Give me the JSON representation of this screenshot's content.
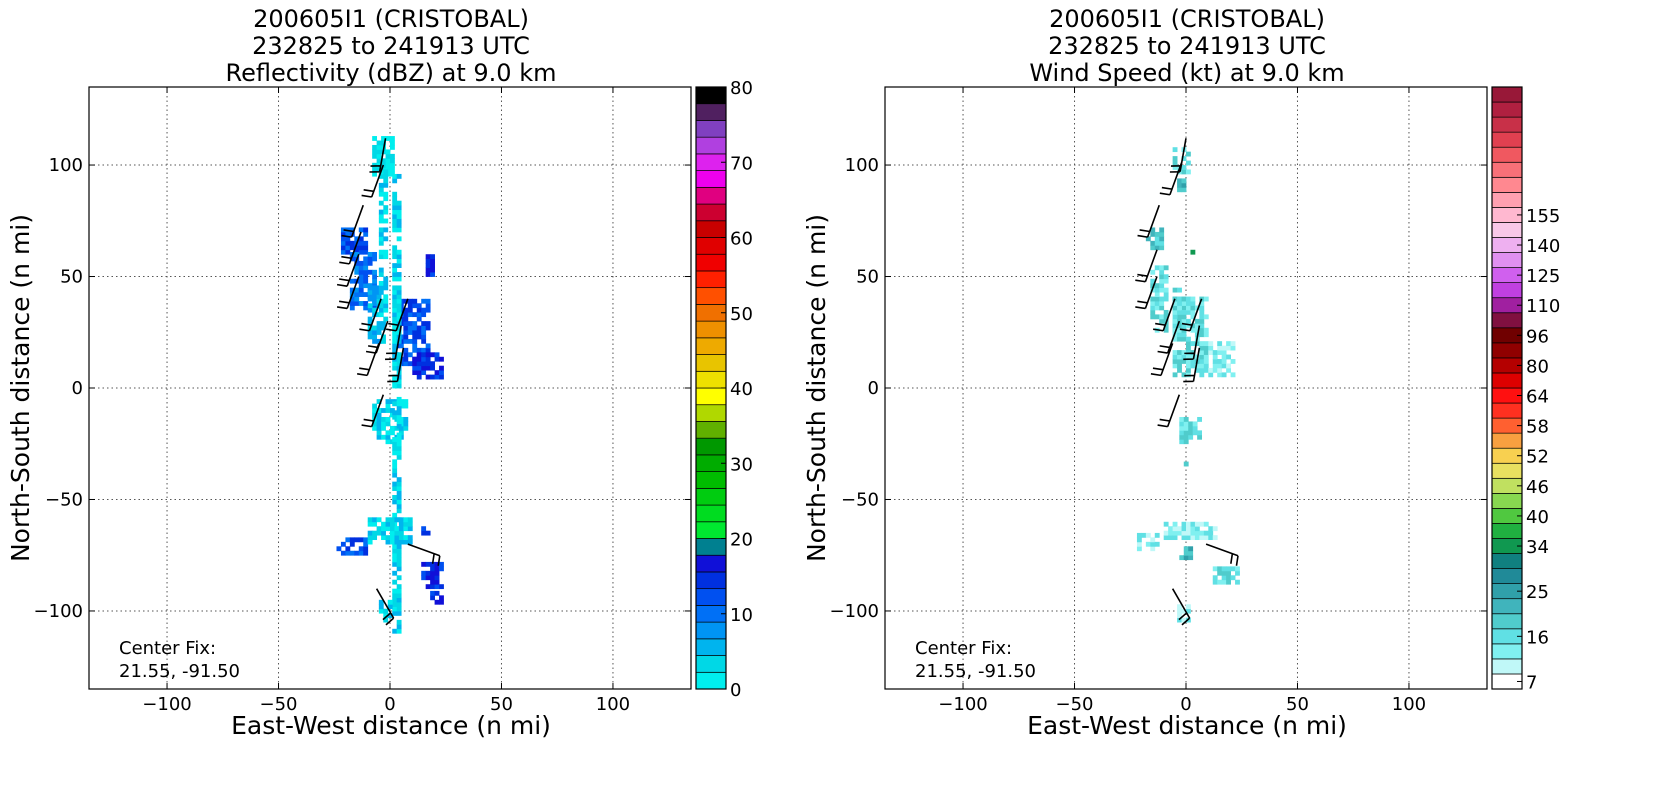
{
  "chart_data": [
    {
      "type": "heatmap",
      "title": [
        "200605I1 (CRISTOBAL)",
        "232825 to 241913 UTC",
        "Reflectivity (dBZ) at 9.0 km"
      ],
      "xlabel": "East-West distance (n mi)",
      "ylabel": "North-South distance (n mi)",
      "xlim": [
        -135,
        135
      ],
      "ylim": [
        -135,
        135
      ],
      "xticks": [
        -100,
        -50,
        0,
        50,
        100
      ],
      "yticks": [
        -100,
        -50,
        0,
        50,
        100
      ],
      "xtick_labels": [
        "−100",
        "−50",
        "0",
        "50",
        "100"
      ],
      "ytick_labels": [
        "−100",
        "−50",
        "0",
        "50",
        "100"
      ],
      "grid": true,
      "annotation": [
        "Center Fix:",
        "21.55, -91.50"
      ],
      "colorbar": {
        "min": 0,
        "max": 80,
        "step": 2.5,
        "ticks": [
          0,
          10,
          20,
          30,
          40,
          50,
          60,
          70,
          80
        ],
        "tick_labels": [
          "0",
          "10",
          "20",
          "30",
          "40",
          "50",
          "60",
          "70",
          "80"
        ],
        "colors": [
          "#00eeee",
          "#00d8e6",
          "#00b4ee",
          "#0094f4",
          "#0070f6",
          "#0050f0",
          "#0030e0",
          "#1010d8",
          "#008090",
          "#00e830",
          "#00dc20",
          "#00cc10",
          "#00bc00",
          "#00ac00",
          "#009800",
          "#60b000",
          "#b0d800",
          "#ffff00",
          "#eee000",
          "#e8c400",
          "#eeaa00",
          "#ee9000",
          "#f07000",
          "#ff5000",
          "#ff2000",
          "#f00000",
          "#e00000",
          "#c80000",
          "#cc0030",
          "#e00080",
          "#ee00ee",
          "#dd22ee",
          "#b040e0",
          "#8040c0",
          "#502060",
          "#000000"
        ]
      },
      "echo_areas": [
        {
          "x0": -8,
          "x1": 2,
          "y0": 95,
          "y1": 112,
          "level": 0
        },
        {
          "x0": -22,
          "x1": -10,
          "y0": 60,
          "y1": 72,
          "level": 5
        },
        {
          "x0": -18,
          "x1": -6,
          "y0": 35,
          "y1": 60,
          "level": 4
        },
        {
          "x0": -10,
          "x1": -2,
          "y0": 20,
          "y1": 45,
          "level": 2
        },
        {
          "x0": 2,
          "x1": 18,
          "y0": 10,
          "y1": 40,
          "level": 5
        },
        {
          "x0": 10,
          "x1": 24,
          "y0": 4,
          "y1": 15,
          "level": 6
        },
        {
          "x0": 16,
          "x1": 20,
          "y0": 50,
          "y1": 61,
          "level": 6
        },
        {
          "x0": -8,
          "x1": 8,
          "y0": -25,
          "y1": -5,
          "level": 1
        },
        {
          "x0": 1,
          "x1": 5,
          "y0": -110,
          "y1": 95,
          "level": 1
        },
        {
          "x0": -5,
          "x1": -1,
          "y0": 30,
          "y1": 100,
          "level": 1
        },
        {
          "x0": -24,
          "x1": -10,
          "y0": -75,
          "y1": -67,
          "level": 5
        },
        {
          "x0": -10,
          "x1": 10,
          "y0": -70,
          "y1": -58,
          "level": 1
        },
        {
          "x0": 14,
          "x1": 24,
          "y0": -90,
          "y1": -78,
          "level": 6
        },
        {
          "x0": 18,
          "x1": 23,
          "y0": -97,
          "y1": -92,
          "level": 6
        },
        {
          "x0": 14,
          "x1": 18,
          "y0": -66,
          "y1": -62,
          "level": 6
        },
        {
          "x0": -5,
          "x1": 0,
          "y0": -105,
          "y1": -95,
          "level": 1
        }
      ],
      "wind_barbs": [
        {
          "x": -2,
          "y": 112,
          "dir": 190
        },
        {
          "x": -3,
          "y": 100,
          "dir": 200
        },
        {
          "x": -12,
          "y": 82,
          "dir": 200
        },
        {
          "x": -13,
          "y": 70,
          "dir": 200
        },
        {
          "x": -14,
          "y": 60,
          "dir": 200
        },
        {
          "x": -14,
          "y": 50,
          "dir": 200
        },
        {
          "x": -4,
          "y": 40,
          "dir": 200
        },
        {
          "x": 8,
          "y": 40,
          "dir": 200
        },
        {
          "x": -1,
          "y": 30,
          "dir": 200
        },
        {
          "x": 5,
          "y": 28,
          "dir": 190
        },
        {
          "x": -5,
          "y": 20,
          "dir": 200
        },
        {
          "x": 6,
          "y": 18,
          "dir": 190
        },
        {
          "x": -3,
          "y": -3,
          "dir": 200
        },
        {
          "x": 8,
          "y": -70,
          "dir": 110
        },
        {
          "x": -6,
          "y": -90,
          "dir": 150
        }
      ]
    },
    {
      "type": "heatmap",
      "title": [
        "200605I1 (CRISTOBAL)",
        "232825 to 241913 UTC",
        "Wind Speed (kt) at 9.0 km"
      ],
      "xlabel": "East-West distance (n mi)",
      "ylabel": "North-South distance (n mi)",
      "xlim": [
        -135,
        135
      ],
      "ylim": [
        -135,
        135
      ],
      "xticks": [
        -100,
        -50,
        0,
        50,
        100
      ],
      "yticks": [
        -100,
        -50,
        0,
        50,
        100
      ],
      "xtick_labels": [
        "−100",
        "−50",
        "0",
        "50",
        "100"
      ],
      "ytick_labels": [
        "−100",
        "−50",
        "0",
        "50",
        "100"
      ],
      "grid": true,
      "annotation": [
        "Center Fix:",
        "21.55, -91.50"
      ],
      "colorbar": {
        "ticks": [
          7,
          16,
          25,
          34,
          40,
          46,
          52,
          58,
          64,
          80,
          96,
          110,
          125,
          140,
          155
        ],
        "tick_labels": [
          "7",
          "16",
          "25",
          "34",
          "40",
          "46",
          "52",
          "58",
          "64",
          "80",
          "96",
          "110",
          "125",
          "140",
          "155"
        ],
        "tick_band_index": [
          0,
          3,
          6,
          9,
          11,
          13,
          15,
          17,
          19,
          21,
          23,
          25,
          27,
          29,
          31
        ],
        "colors": [
          "#ffffff",
          "#c0f8f8",
          "#80f0f0",
          "#60e0e4",
          "#50cccc",
          "#40b4bc",
          "#30a0aa",
          "#208a98",
          "#108080",
          "#109850",
          "#20b040",
          "#50c840",
          "#88d850",
          "#c0e060",
          "#e8e060",
          "#f8d050",
          "#f8a040",
          "#ff6030",
          "#ff3020",
          "#ff1010",
          "#dd0000",
          "#b40000",
          "#900000",
          "#700000",
          "#801040",
          "#a020a0",
          "#c040e0",
          "#d060ee",
          "#e090f0",
          "#eeb0f0",
          "#f8c8e8",
          "#ffb8d0",
          "#ffa0b0",
          "#ff8890",
          "#f87078",
          "#f05860",
          "#e04050",
          "#c83048",
          "#b02040",
          "#981838"
        ]
      },
      "echo_areas": [
        {
          "x0": -6,
          "x1": 2,
          "y0": 96,
          "y1": 108,
          "level": 3
        },
        {
          "x0": -4,
          "x1": 2,
          "y0": 88,
          "y1": 94,
          "level": 5
        },
        {
          "x0": -18,
          "x1": -10,
          "y0": 62,
          "y1": 72,
          "level": 4
        },
        {
          "x0": -16,
          "x1": -8,
          "y0": 25,
          "y1": 55,
          "level": 3
        },
        {
          "x0": -6,
          "x1": 0,
          "y0": 25,
          "y1": 45,
          "level": 3
        },
        {
          "x0": -6,
          "x1": 10,
          "y0": 5,
          "y1": 40,
          "level": 3
        },
        {
          "x0": 10,
          "x1": 22,
          "y0": 5,
          "y1": 20,
          "level": 2
        },
        {
          "x0": -3,
          "x1": 7,
          "y0": -25,
          "y1": -14,
          "level": 3
        },
        {
          "x0": -22,
          "x1": -12,
          "y0": -73,
          "y1": -66,
          "level": 2
        },
        {
          "x0": -10,
          "x1": 14,
          "y0": -68,
          "y1": -60,
          "level": 2
        },
        {
          "x0": -3,
          "x1": 2,
          "y0": -77,
          "y1": -71,
          "level": 5
        },
        {
          "x0": 12,
          "x1": 23,
          "y0": -88,
          "y1": -80,
          "level": 3
        },
        {
          "x0": -1,
          "x1": 1,
          "y0": -48,
          "y1": -46,
          "level": 5
        },
        {
          "x0": -1,
          "x1": 1,
          "y0": -35,
          "y1": -33,
          "level": 4
        },
        {
          "x0": -4,
          "x1": 1,
          "y0": -105,
          "y1": -98,
          "level": 2
        },
        {
          "x0": 2,
          "x1": 4,
          "y0": 60,
          "y1": 62,
          "level": 10
        }
      ],
      "wind_barbs": [
        {
          "x": 0,
          "y": 112,
          "dir": 190
        },
        {
          "x": -2,
          "y": 101,
          "dir": 200
        },
        {
          "x": -12,
          "y": 82,
          "dir": 200
        },
        {
          "x": -13,
          "y": 62,
          "dir": 200
        },
        {
          "x": -13,
          "y": 50,
          "dir": 200
        },
        {
          "x": -5,
          "y": 40,
          "dir": 200
        },
        {
          "x": 7,
          "y": 40,
          "dir": 200
        },
        {
          "x": -3,
          "y": 30,
          "dir": 200
        },
        {
          "x": 6,
          "y": 28,
          "dir": 190
        },
        {
          "x": -6,
          "y": 20,
          "dir": 200
        },
        {
          "x": 6,
          "y": 18,
          "dir": 190
        },
        {
          "x": -3,
          "y": -3,
          "dir": 200
        },
        {
          "x": 9,
          "y": -70,
          "dir": 110
        },
        {
          "x": -6,
          "y": -90,
          "dir": 150
        }
      ]
    }
  ]
}
